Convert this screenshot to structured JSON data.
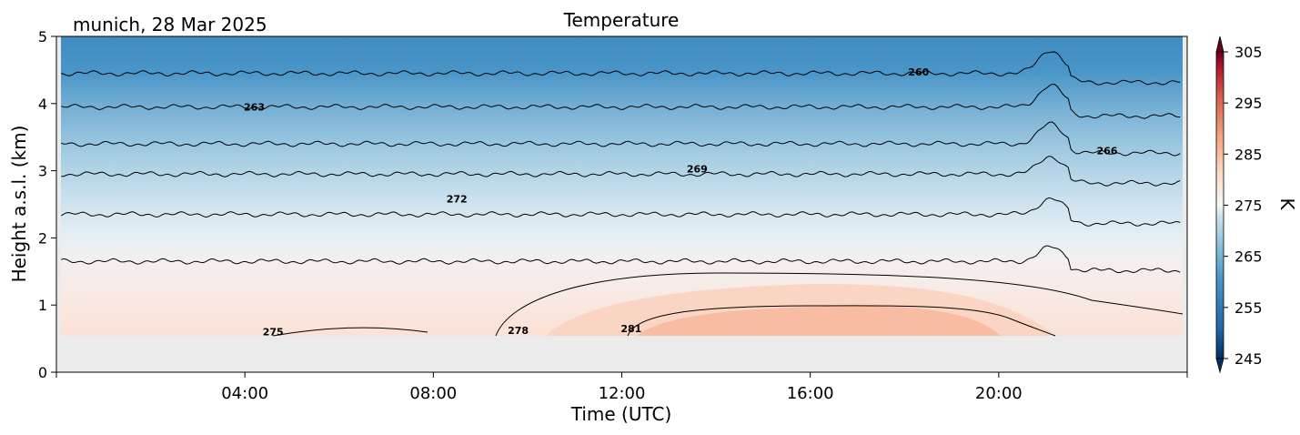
{
  "location_date": "munich, 28 Mar 2025",
  "chart_data": {
    "type": "heatmap",
    "subtype": "filled-contour",
    "title": "Temperature",
    "xlabel": "Time (UTC)",
    "ylabel": "Height a.s.l. (km)",
    "x_ticks": [
      "04:00",
      "08:00",
      "12:00",
      "16:00",
      "20:00"
    ],
    "x_tick_hours": [
      4,
      8,
      12,
      16,
      20
    ],
    "xlim_hours": [
      0,
      24
    ],
    "y_ticks": [
      "0",
      "1",
      "2",
      "3",
      "4",
      "5"
    ],
    "ylim": [
      0,
      5
    ],
    "colorbar": {
      "label": "K",
      "range": [
        245,
        305
      ],
      "ticks": [
        "245",
        "255",
        "265",
        "275",
        "285",
        "295",
        "305"
      ],
      "colormap": "RdBu_r",
      "extend": "both"
    },
    "data_bottom_km": 0.55,
    "contour_levels": [
      {
        "value": 263,
        "label": "263",
        "label_hour": 4.2,
        "label_km": 3.95
      },
      {
        "value": 260,
        "label": "260",
        "label_hour": 18.3,
        "label_km": 4.47
      },
      {
        "value": 266,
        "label": "266",
        "label_hour": 22.3,
        "label_km": 3.3
      },
      {
        "value": 269,
        "label": "269",
        "label_hour": 13.6,
        "label_km": 3.03
      },
      {
        "value": 272,
        "label": "272",
        "label_hour": 8.5,
        "label_km": 2.58
      },
      {
        "value": 275,
        "label": "275",
        "label_hour": 4.6,
        "label_km": 0.6
      },
      {
        "value": 278,
        "label": "278",
        "label_hour": 9.8,
        "label_km": 0.62
      },
      {
        "value": 281,
        "label": "281",
        "label_hour": 12.2,
        "label_km": 0.65
      }
    ],
    "isotherm_heights_km": [
      {
        "value": 260,
        "km": 4.45
      },
      {
        "value": 263,
        "km": 3.95
      },
      {
        "value": 266,
        "km": 3.4
      },
      {
        "value": 269,
        "km": 2.95
      },
      {
        "value": 272,
        "km": 2.35
      },
      {
        "value": 275,
        "km": 1.65
      }
    ]
  }
}
